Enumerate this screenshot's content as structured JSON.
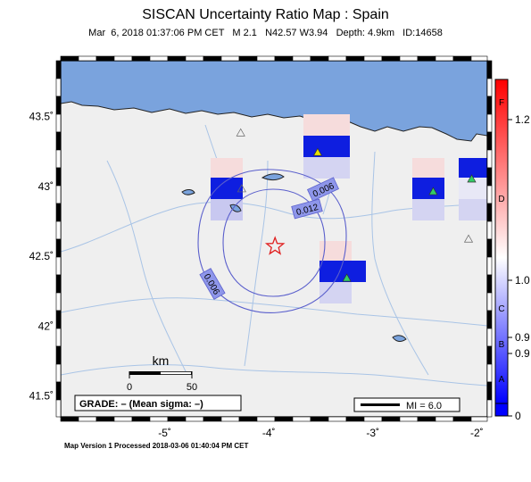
{
  "title": "SISCAN Uncertainty Ratio Map : Spain",
  "event": {
    "datetime": "Mar  6, 2018 01:37:06 PM CET",
    "magnitude": "M 2.1",
    "location": "N42.57 W3.94",
    "depth": "Depth: 4.9km",
    "id": "ID:14658"
  },
  "axes": {
    "lat_ticks": [
      {
        "value": 43.5,
        "label": "43.5˚"
      },
      {
        "value": 43.0,
        "label": "43˚"
      },
      {
        "value": 42.5,
        "label": "42.5˚"
      },
      {
        "value": 42.0,
        "label": "42˚"
      },
      {
        "value": 41.5,
        "label": "41.5˚"
      }
    ],
    "lon_ticks": [
      {
        "value": -5,
        "label": "-5˚"
      },
      {
        "value": -4,
        "label": "-4˚"
      },
      {
        "value": -3,
        "label": "-3˚"
      },
      {
        "value": -2,
        "label": "-2˚"
      }
    ],
    "lon_range": [
      -6.0,
      -1.9
    ],
    "lat_range": [
      41.35,
      43.9
    ]
  },
  "epicenter": {
    "lon": -3.94,
    "lat": 42.57
  },
  "contours": [
    {
      "label": "0.006"
    },
    {
      "label": "0.012"
    },
    {
      "label": "0.006"
    }
  ],
  "stations": [
    {
      "name": "station-1",
      "lon": -3.53,
      "lat": 43.24,
      "color": "#e6e000"
    },
    {
      "name": "station-2",
      "lon": -2.42,
      "lat": 42.96,
      "color": "#33cc66"
    },
    {
      "name": "station-3",
      "lon": -2.05,
      "lat": 43.05,
      "color": "#33cc66"
    },
    {
      "name": "station-4",
      "lon": -3.25,
      "lat": 42.34,
      "color": "#33cc66"
    },
    {
      "name": "station-5",
      "lon": -4.26,
      "lat": 42.98,
      "color": "none"
    },
    {
      "name": "station-6",
      "lon": -4.27,
      "lat": 43.38,
      "color": "none"
    },
    {
      "name": "station-7",
      "lon": -2.08,
      "lat": 42.62,
      "color": "none"
    }
  ],
  "scale_bar": {
    "unit": "km",
    "tick_start": "0",
    "tick_end": "50"
  },
  "grade": "GRADE: – (Mean sigma: –)",
  "mi_legend": "MI = 6.0",
  "colorbar": {
    "grades": [
      "F",
      "D",
      "C",
      "B",
      "A"
    ],
    "values": [
      "1.2",
      "1.0",
      "0.9",
      "0.9",
      "0"
    ]
  },
  "colors": {
    "sea": "#7aa3dd",
    "land": "#efefef",
    "river": "#a9c4e6",
    "contour": "#5a5fcc",
    "epicenter": "#e02020"
  },
  "footer": "Map Version 1 Processed 2018-03-06 01:40:04 PM CET"
}
